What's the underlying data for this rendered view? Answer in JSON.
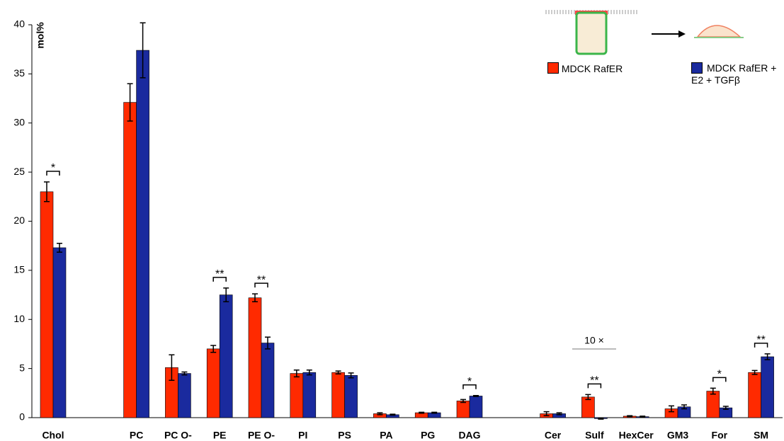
{
  "chart_data": {
    "type": "bar",
    "y_label": "mol%",
    "categories": [
      "Chol",
      null,
      "PC",
      "PC O-",
      "PE",
      "PE O-",
      "PI",
      "PS",
      "PA",
      "PG",
      "DAG",
      null,
      "Cer",
      "Sulf",
      "HexCer",
      "GM3",
      "For",
      "SM"
    ],
    "series": [
      {
        "name": "MDCK RafER",
        "color": "#ff2a00",
        "values": [
          23.0,
          null,
          32.1,
          5.1,
          7.0,
          12.2,
          4.5,
          4.6,
          0.4,
          0.5,
          1.7,
          null,
          0.4,
          2.1,
          0.15,
          0.9,
          2.7,
          4.6
        ],
        "errors": [
          1.0,
          null,
          1.9,
          1.3,
          0.35,
          0.4,
          0.35,
          0.15,
          0.1,
          0.05,
          0.15,
          null,
          0.2,
          0.25,
          0.05,
          0.3,
          0.3,
          0.2
        ]
      },
      {
        "name": "MDCK RafER + E2 + TGFβ",
        "color": "#1a2a9e",
        "values": [
          17.3,
          null,
          37.4,
          4.5,
          12.5,
          7.6,
          4.6,
          4.3,
          0.3,
          0.5,
          2.2,
          null,
          0.4,
          -0.1,
          0.1,
          1.1,
          1.0,
          6.2
        ],
        "errors": [
          0.45,
          null,
          2.8,
          0.15,
          0.7,
          0.6,
          0.25,
          0.25,
          0.05,
          0.05,
          0.05,
          null,
          0.1,
          0.05,
          0.05,
          0.2,
          0.15,
          0.3
        ]
      }
    ],
    "significance": [
      "*",
      null,
      null,
      null,
      "**",
      "**",
      null,
      null,
      null,
      null,
      "*",
      null,
      null,
      "**",
      null,
      null,
      "*",
      "**"
    ],
    "annotation": "10 ×",
    "ylim": [
      0,
      40
    ],
    "yticks": [
      0,
      5,
      10,
      15,
      20,
      25,
      30,
      35,
      40
    ]
  }
}
